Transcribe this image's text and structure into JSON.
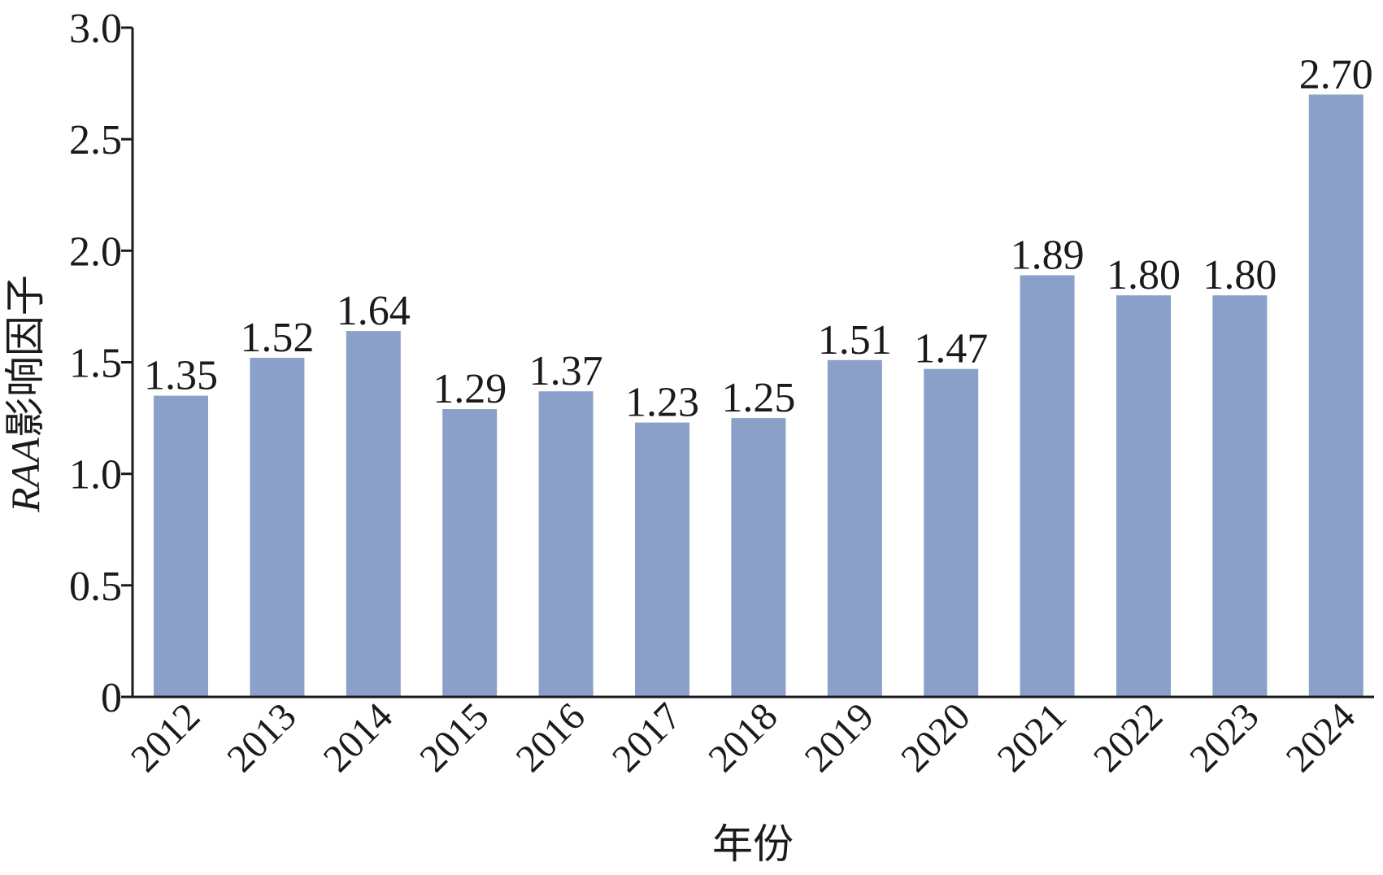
{
  "chart_data": {
    "type": "bar",
    "title": "",
    "xlabel": "年份",
    "ylabel": {
      "italic": "RAA",
      "rest": "影响因子"
    },
    "categories": [
      "2012",
      "2013",
      "2014",
      "2015",
      "2016",
      "2017",
      "2018",
      "2019",
      "2020",
      "2021",
      "2022",
      "2023",
      "2024"
    ],
    "values": [
      1.35,
      1.52,
      1.64,
      1.29,
      1.37,
      1.23,
      1.25,
      1.51,
      1.47,
      1.89,
      1.8,
      1.8,
      2.7
    ],
    "data_labels": [
      "1.35",
      "1.52",
      "1.64",
      "1.29",
      "1.37",
      "1.23",
      "1.25",
      "1.51",
      "1.47",
      "1.89",
      "1.80",
      "1.80",
      "2.70"
    ],
    "ylim": [
      0,
      3.0
    ],
    "yticks": [
      {
        "value": 0,
        "label": "0"
      },
      {
        "value": 0.5,
        "label": "0.5"
      },
      {
        "value": 1.0,
        "label": "1.0"
      },
      {
        "value": 1.5,
        "label": "1.5"
      },
      {
        "value": 2.0,
        "label": "2.0"
      },
      {
        "value": 2.5,
        "label": "2.5"
      },
      {
        "value": 3.0,
        "label": "3.0"
      }
    ],
    "grid": false,
    "legend": "none",
    "bar_color": "#8aa0c8",
    "axis_color": "#1a1a1a"
  }
}
